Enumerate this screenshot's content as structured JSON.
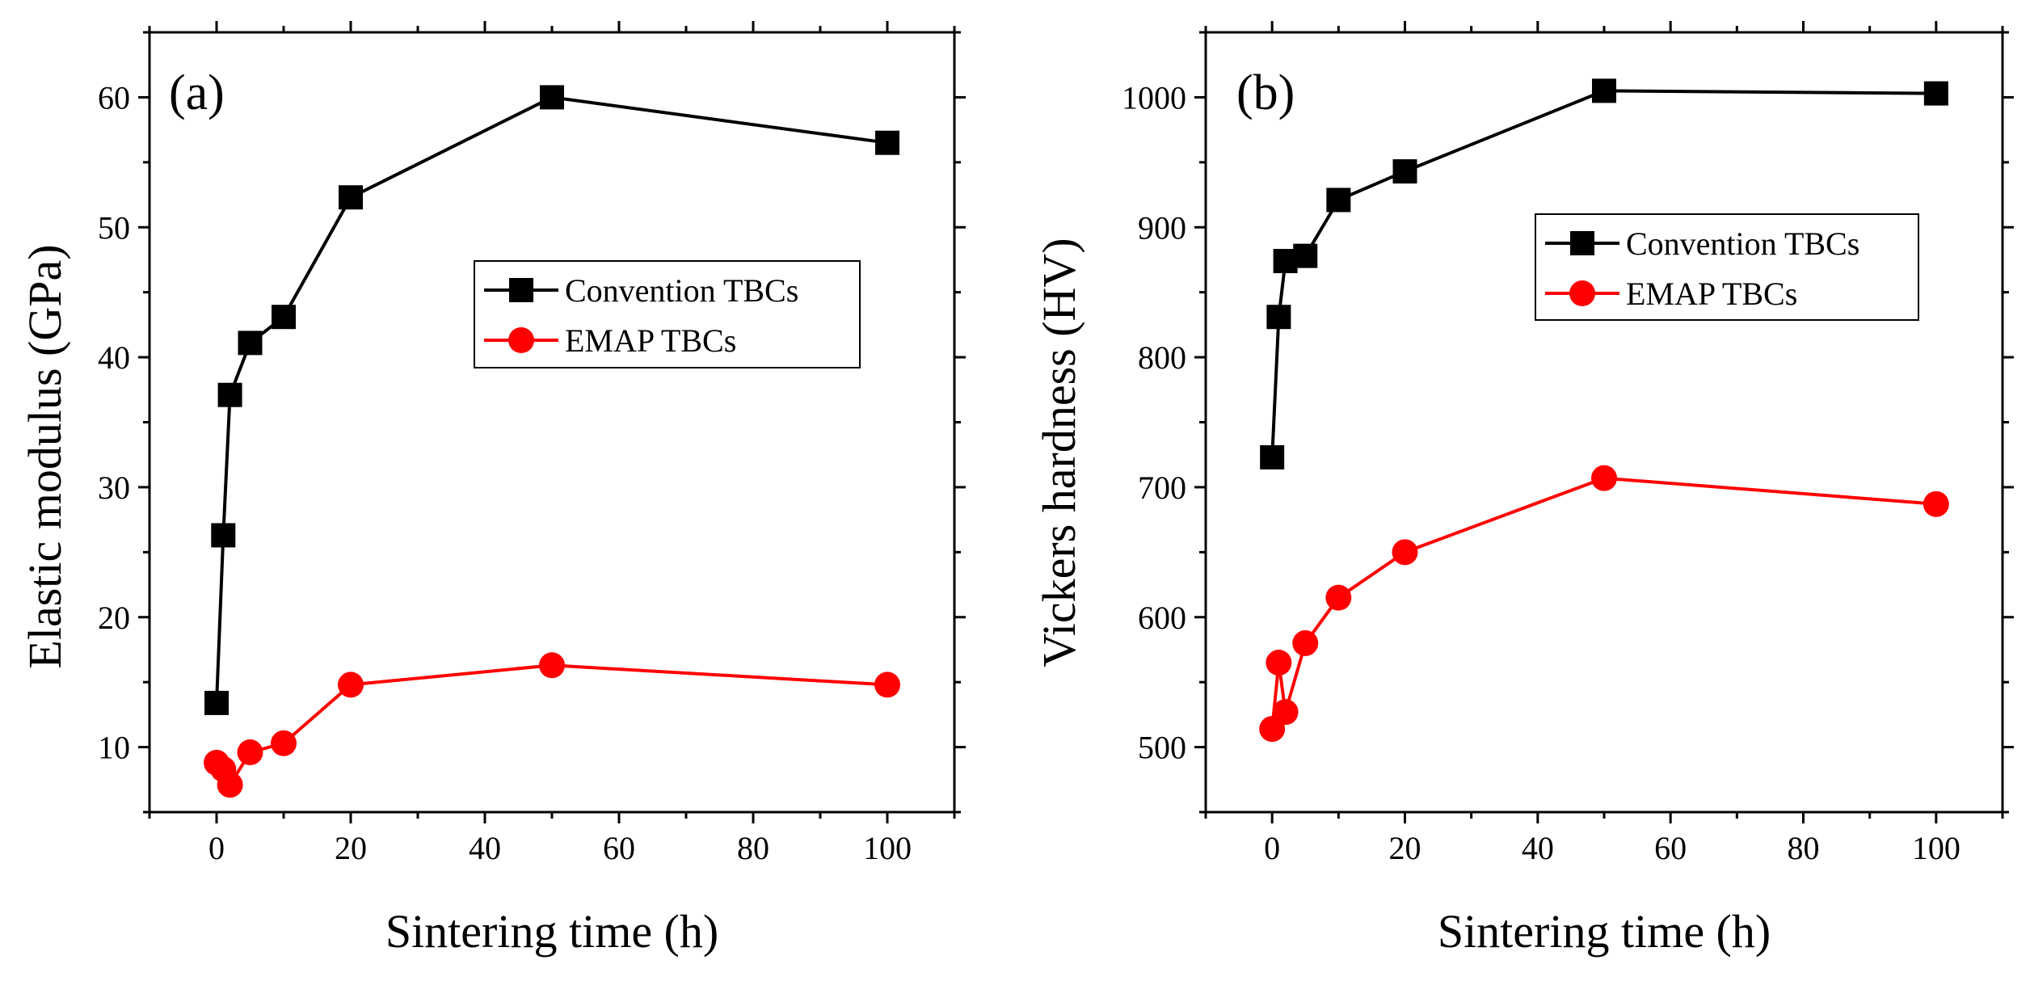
{
  "chart_data": [
    {
      "type": "line",
      "panel_label": "(a)",
      "xlabel": "Sintering time (h)",
      "ylabel": "Elastic modulus (GPa)",
      "xlim": [
        -10,
        110
      ],
      "ylim": [
        5,
        65
      ],
      "xticks": [
        0,
        20,
        40,
        60,
        80,
        100
      ],
      "yticks": [
        10,
        20,
        30,
        40,
        50,
        60
      ],
      "legend_position": "center-right",
      "series": [
        {
          "name": "Convention TBCs",
          "color": "#000000",
          "marker": "square",
          "x": [
            0,
            1,
            2,
            5,
            10,
            20,
            50,
            100
          ],
          "y": [
            13.4,
            26.3,
            37.1,
            41.1,
            43.1,
            52.3,
            60.0,
            56.5
          ]
        },
        {
          "name": "EMAP TBCs",
          "color": "#ff0000",
          "marker": "circle",
          "x": [
            0,
            1,
            2,
            5,
            10,
            20,
            50,
            100
          ],
          "y": [
            8.8,
            8.3,
            7.1,
            9.6,
            10.3,
            14.8,
            16.3,
            14.8
          ]
        }
      ]
    },
    {
      "type": "line",
      "panel_label": "(b)",
      "xlabel": "Sintering time (h)",
      "ylabel": "Vickers hardness (HV)",
      "xlim": [
        -10,
        110
      ],
      "ylim": [
        450,
        1050
      ],
      "xticks": [
        0,
        20,
        40,
        60,
        80,
        100
      ],
      "yticks": [
        500,
        600,
        700,
        800,
        900,
        1000
      ],
      "legend_position": "upper-right",
      "series": [
        {
          "name": "Convention TBCs",
          "color": "#000000",
          "marker": "square",
          "x": [
            0,
            1,
            2,
            5,
            10,
            20,
            50,
            100
          ],
          "y": [
            723,
            831,
            874,
            878,
            921,
            943,
            1005,
            1003
          ]
        },
        {
          "name": "EMAP TBCs",
          "color": "#ff0000",
          "marker": "circle",
          "x": [
            0,
            1,
            2,
            5,
            10,
            20,
            50,
            100
          ],
          "y": [
            514,
            565,
            527,
            580,
            615,
            650,
            707,
            687
          ]
        }
      ]
    }
  ]
}
